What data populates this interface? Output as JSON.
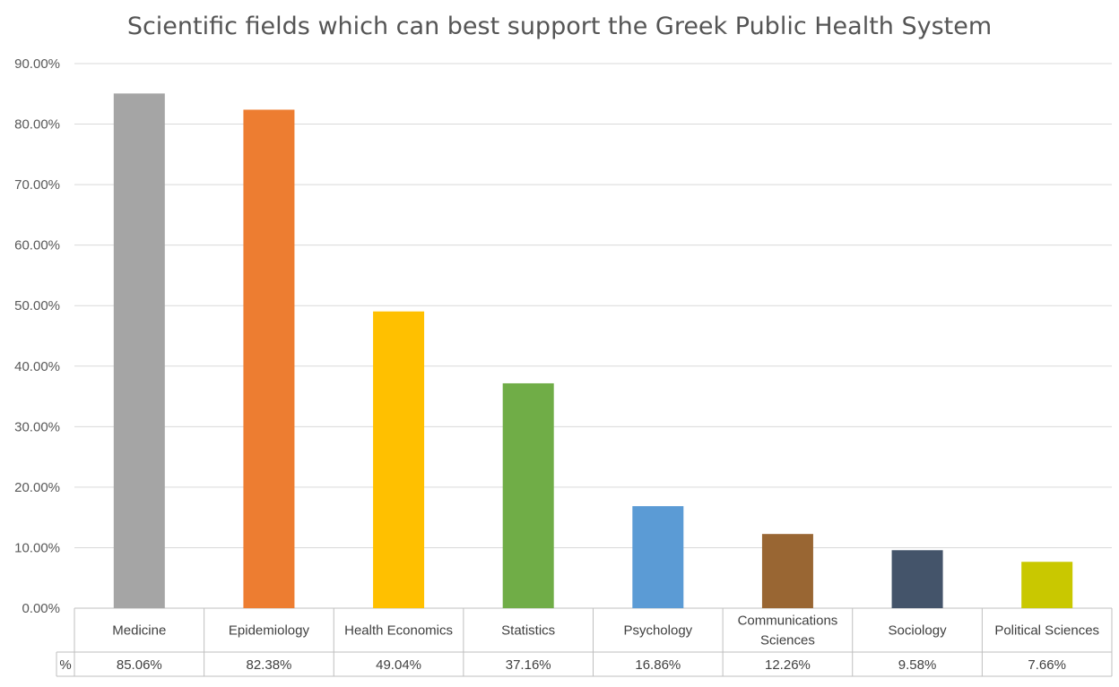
{
  "chart_data": {
    "type": "bar",
    "title": "Scientific fields which can best support the Greek Public Health System",
    "xlabel": "",
    "ylabel": "",
    "ylim": [
      0,
      90
    ],
    "yticks": [
      "0.00%",
      "10.00%",
      "20.00%",
      "30.00%",
      "40.00%",
      "50.00%",
      "60.00%",
      "70.00%",
      "80.00%",
      "90.00%"
    ],
    "grid": true,
    "legend": "none",
    "categories": [
      [
        "Medicine"
      ],
      [
        "Epidemiology"
      ],
      [
        "Health Economics"
      ],
      [
        "Statistics"
      ],
      [
        "Psychology"
      ],
      [
        "Communications",
        "Sciences"
      ],
      [
        "Sociology"
      ],
      [
        "Political Sciences"
      ]
    ],
    "series": [
      {
        "name": "%",
        "values": [
          85.06,
          82.38,
          49.04,
          37.16,
          16.86,
          12.26,
          9.58,
          7.66
        ],
        "labels": [
          "85.06%",
          "82.38%",
          "49.04%",
          "37.16%",
          "16.86%",
          "12.26%",
          "9.58%",
          "7.66%"
        ]
      }
    ],
    "colors": [
      "#a5a5a5",
      "#ed7d31",
      "#ffc000",
      "#70ad47",
      "#5b9bd5",
      "#996633",
      "#44546a",
      "#c9c800"
    ]
  }
}
